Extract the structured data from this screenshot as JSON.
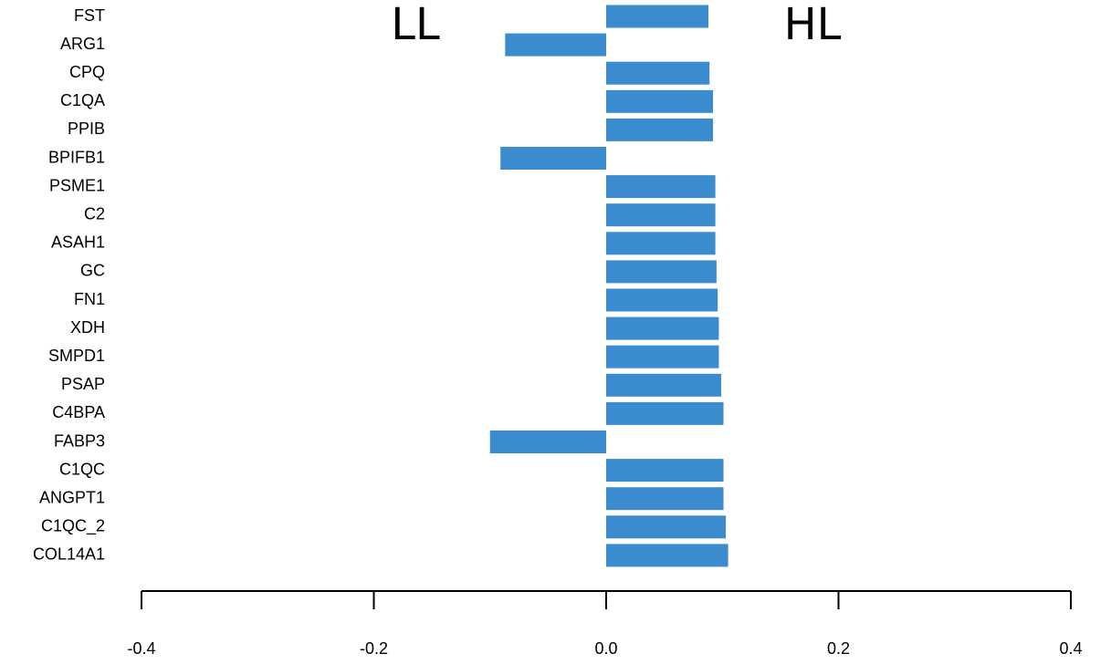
{
  "chart_data": {
    "type": "barh",
    "annotations": [
      "LL",
      "HL"
    ],
    "categories": [
      "FST",
      "ARG1",
      "CPQ",
      "C1QA",
      "PPIB",
      "BPIFB1",
      "PSME1",
      "C2",
      "ASAH1",
      "GC",
      "FN1",
      "XDH",
      "SMPD1",
      "PSAP",
      "C4BPA",
      "FABP3",
      "C1QC",
      "ANGPT1",
      "C1QC_2",
      "COL14A1"
    ],
    "values": [
      0.088,
      -0.087,
      0.089,
      0.092,
      0.092,
      -0.091,
      0.094,
      0.094,
      0.094,
      0.095,
      0.096,
      0.097,
      0.097,
      0.099,
      0.101,
      -0.1,
      0.101,
      0.101,
      0.103,
      0.105
    ],
    "color": "#3a8ccf",
    "xlim": [
      -0.4,
      0.4
    ],
    "xticks": [
      -0.4,
      -0.2,
      {
        "value": 0,
        "label": "0.0"
      },
      0.2,
      0.4
    ]
  }
}
